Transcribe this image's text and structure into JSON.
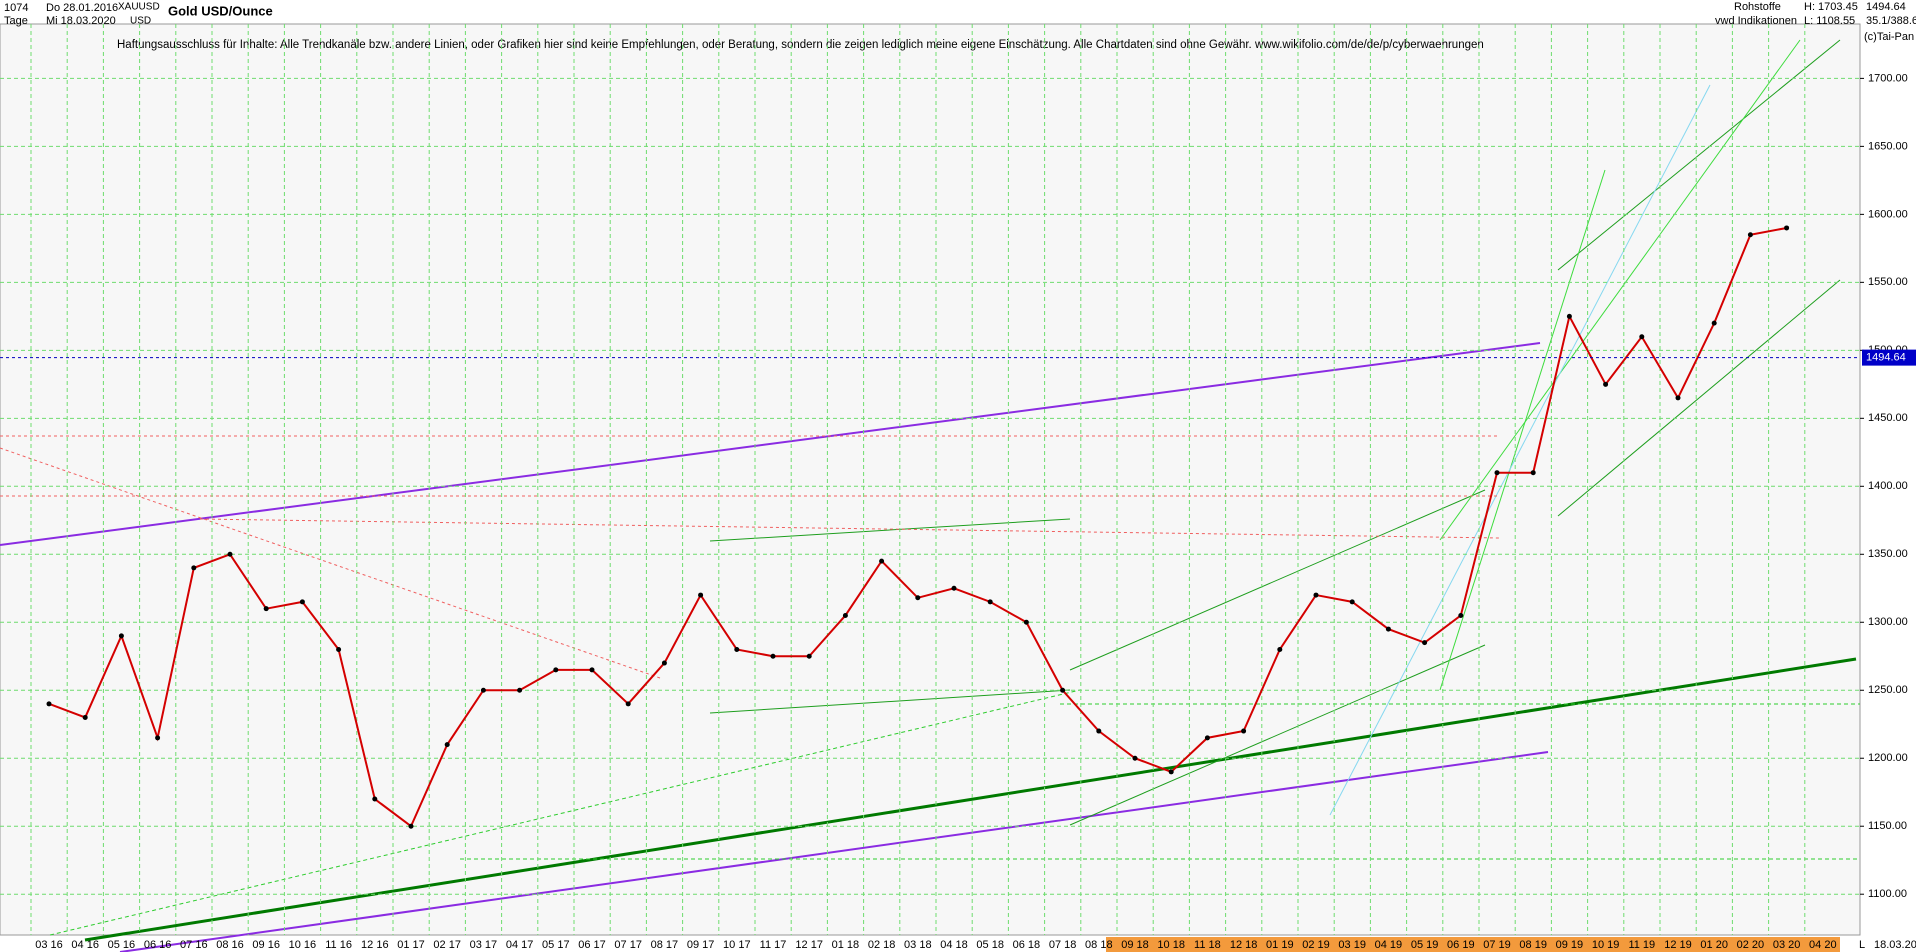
{
  "header": {
    "id": "1074",
    "start": "Do 28.01.2016",
    "symbol": "XAUUSD",
    "period": "Tage",
    "end": "Mi 18.03.2020",
    "currency": "USD",
    "group": "Rohstoffe",
    "source": "vwd Indikationen",
    "high": "H: 1703.45",
    "low": "L: 1108.55",
    "last": "1494.64",
    "ratio": "35.1/388.6",
    "copyright": "(c)Tai-Pan",
    "axis_end_marker": "L",
    "axis_end_date": "18.03.20"
  },
  "chart_data": {
    "type": "line",
    "title": "Gold USD/Ounce",
    "subtitle": "Haftungsausschluss für Inhalte: Alle Trendkanäle bzw. andere Linien, oder Grafiken hier sind keine Empfehlungen, oder Beratung, sondern die zeigen lediglich meine eigene Einschätzung. Alle Chartdaten sind ohne Gewähr.  www.wikifolio.com/de/de/p/cyberwaehrungen",
    "categories": [
      "03 16",
      "04 16",
      "05 16",
      "06 16",
      "07 16",
      "08 16",
      "09 16",
      "10 16",
      "11 16",
      "12 16",
      "01 17",
      "02 17",
      "03 17",
      "04 17",
      "05 17",
      "06 17",
      "07 17",
      "08 17",
      "09 17",
      "10 17",
      "11 17",
      "12 17",
      "01 18",
      "02 18",
      "03 18",
      "04 18",
      "05 18",
      "06 18",
      "07 18",
      "08 18",
      "09 18",
      "10 18",
      "11 18",
      "12 18",
      "01 19",
      "02 19",
      "03 19",
      "04 19",
      "05 19",
      "06 19",
      "07 19",
      "08 19",
      "09 19",
      "10 19",
      "11 19",
      "12 19",
      "01 20",
      "02 20",
      "03 20",
      "04 20"
    ],
    "series": [
      {
        "name": "XAUUSD",
        "color": "#d40000",
        "values": [
          1240,
          1230,
          1290,
          1215,
          1340,
          1350,
          1310,
          1315,
          1280,
          1170,
          1150,
          1210,
          1250,
          1250,
          1265,
          1265,
          1240,
          1270,
          1320,
          1280,
          1275,
          1275,
          1305,
          1345,
          1318,
          1325,
          1315,
          1300,
          1250,
          1220,
          1200,
          1190,
          1215,
          1220,
          1280,
          1320,
          1315,
          1295,
          1285,
          1305,
          1410,
          1410,
          1525,
          1475,
          1510,
          1465,
          1520,
          1585,
          1590,
          null
        ]
      }
    ],
    "ylim": [
      1070,
      1740
    ],
    "yticks": [
      {
        "value": 1100,
        "label": "1100.00"
      },
      {
        "value": 1150,
        "label": "1150.00"
      },
      {
        "value": 1200,
        "label": "1200.00"
      },
      {
        "value": 1250,
        "label": "1250.00"
      },
      {
        "value": 1300,
        "label": "1300.00"
      },
      {
        "value": 1350,
        "label": "1350.00"
      },
      {
        "value": 1400,
        "label": "1400.00"
      },
      {
        "value": 1450,
        "label": "1450.00"
      },
      {
        "value": 1500,
        "label": "1500.00"
      },
      {
        "value": 1550,
        "label": "1550.00"
      },
      {
        "value": 1600,
        "label": "1600.00"
      },
      {
        "value": 1650,
        "label": "1650.00"
      },
      {
        "value": 1700,
        "label": "1700.00"
      }
    ],
    "last_price": 1494.64,
    "grid": true,
    "grid_color": "#6fdc6f"
  }
}
